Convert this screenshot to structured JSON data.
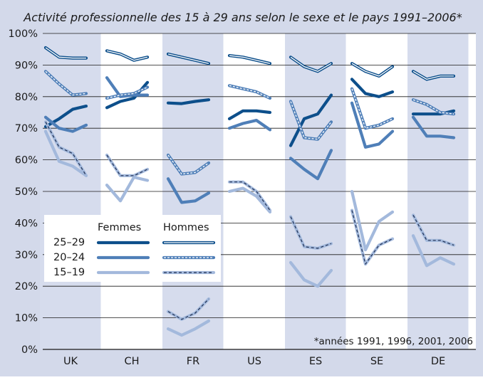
{
  "chart_data": {
    "type": "line",
    "title": "Activité professionnelle des 15 à 29 ans selon le sexe et le pays 1991–2006*",
    "footnote": "*années 1991, 1996, 2001, 2006",
    "countries": [
      "UK",
      "CH",
      "FR",
      "US",
      "ES",
      "SE",
      "DE"
    ],
    "years": [
      1991,
      1996,
      2001,
      2006
    ],
    "yticks": [
      "0%",
      "10%",
      "20%",
      "30%",
      "40%",
      "50%",
      "60%",
      "70%",
      "80%",
      "90%",
      "100%"
    ],
    "ylim": [
      0,
      100
    ],
    "grid": true,
    "shaded_columns": [
      "UK",
      "FR",
      "ES",
      "DE"
    ],
    "legend": {
      "position": "left-middle",
      "female_label": "Femmes",
      "male_label": "Hommes",
      "age_groups": [
        "25–29",
        "20–24",
        "15–19"
      ]
    },
    "colors": {
      "age_25_29": "#0d4f8b",
      "age_20_24": "#4f7fb8",
      "age_15_19": "#a3b9dc",
      "shade": "#d6dced",
      "frame": "#d3d9ea",
      "grid": "#1a1a1a"
    },
    "series": [
      {
        "country": "UK",
        "sex": "F",
        "age": "25–29",
        "values": [
          70.5,
          73,
          76,
          77
        ]
      },
      {
        "country": "UK",
        "sex": "F",
        "age": "20–24",
        "values": [
          73.5,
          70,
          69,
          71
        ]
      },
      {
        "country": "UK",
        "sex": "F",
        "age": "15–19",
        "values": [
          69,
          59.5,
          58,
          55
        ]
      },
      {
        "country": "UK",
        "sex": "M",
        "age": "25–29",
        "values": [
          95.5,
          92.5,
          92.2,
          92.2
        ]
      },
      {
        "country": "UK",
        "sex": "M",
        "age": "20–24",
        "values": [
          88,
          84,
          80.5,
          81
        ]
      },
      {
        "country": "UK",
        "sex": "M",
        "age": "15–19",
        "values": [
          72,
          64,
          62,
          55
        ]
      },
      {
        "country": "CH",
        "sex": "F",
        "age": "25–29",
        "values": [
          76.5,
          78.5,
          79.5,
          84.5
        ]
      },
      {
        "country": "CH",
        "sex": "F",
        "age": "20–24",
        "values": [
          86,
          80,
          80.5,
          80.5
        ]
      },
      {
        "country": "CH",
        "sex": "F",
        "age": "15–19",
        "values": [
          52,
          47,
          54.5,
          53.5
        ]
      },
      {
        "country": "CH",
        "sex": "M",
        "age": "25–29",
        "values": [
          94.5,
          93.5,
          91.5,
          92.5
        ]
      },
      {
        "country": "CH",
        "sex": "M",
        "age": "20–24",
        "values": [
          79.5,
          80.5,
          81,
          83
        ]
      },
      {
        "country": "CH",
        "sex": "M",
        "age": "15–19",
        "values": [
          61.5,
          55,
          55,
          57
        ]
      },
      {
        "country": "FR",
        "sex": "F",
        "age": "25–29",
        "values": [
          78,
          77.8,
          78.5,
          79
        ]
      },
      {
        "country": "FR",
        "sex": "F",
        "age": "20–24",
        "values": [
          54,
          46.5,
          47,
          49.5
        ]
      },
      {
        "country": "FR",
        "sex": "F",
        "age": "15–19",
        "values": [
          6.5,
          4.5,
          6.5,
          9
        ]
      },
      {
        "country": "FR",
        "sex": "M",
        "age": "25–29",
        "values": [
          93.5,
          92.5,
          91.5,
          90.5
        ]
      },
      {
        "country": "FR",
        "sex": "M",
        "age": "20–24",
        "values": [
          61.5,
          55.5,
          56,
          59
        ]
      },
      {
        "country": "FR",
        "sex": "M",
        "age": "15–19",
        "values": [
          12,
          9.5,
          11.5,
          16
        ]
      },
      {
        "country": "US",
        "sex": "F",
        "age": "25–29",
        "values": [
          73,
          75.5,
          75.5,
          75
        ]
      },
      {
        "country": "US",
        "sex": "F",
        "age": "20–24",
        "values": [
          70,
          71.5,
          72.5,
          69.5
        ]
      },
      {
        "country": "US",
        "sex": "F",
        "age": "15–19",
        "values": [
          50,
          51,
          48.5,
          43.5
        ]
      },
      {
        "country": "US",
        "sex": "M",
        "age": "25–29",
        "values": [
          93,
          92.5,
          91.5,
          90.5
        ]
      },
      {
        "country": "US",
        "sex": "M",
        "age": "20–24",
        "values": [
          83.5,
          82.5,
          81.5,
          79.5
        ]
      },
      {
        "country": "US",
        "sex": "M",
        "age": "15–19",
        "values": [
          53,
          53,
          50,
          44
        ]
      },
      {
        "country": "ES",
        "sex": "F",
        "age": "25–29",
        "values": [
          64.5,
          73,
          74.5,
          80.5
        ]
      },
      {
        "country": "ES",
        "sex": "F",
        "age": "20–24",
        "values": [
          60.5,
          57,
          54,
          63
        ]
      },
      {
        "country": "ES",
        "sex": "F",
        "age": "15–19",
        "values": [
          27.5,
          22,
          20,
          25
        ]
      },
      {
        "country": "ES",
        "sex": "M",
        "age": "25–29",
        "values": [
          92.5,
          89.5,
          88,
          90.5
        ]
      },
      {
        "country": "ES",
        "sex": "M",
        "age": "20–24",
        "values": [
          78.5,
          67,
          66.5,
          72
        ]
      },
      {
        "country": "ES",
        "sex": "M",
        "age": "15–19",
        "values": [
          42,
          32.5,
          32,
          33.5
        ]
      },
      {
        "country": "SE",
        "sex": "F",
        "age": "25–29",
        "values": [
          85.5,
          81,
          80,
          81.5
        ]
      },
      {
        "country": "SE",
        "sex": "F",
        "age": "20–24",
        "values": [
          78,
          64,
          65,
          69
        ]
      },
      {
        "country": "SE",
        "sex": "F",
        "age": "15–19",
        "values": [
          50,
          31.5,
          40.5,
          43.5
        ]
      },
      {
        "country": "SE",
        "sex": "M",
        "age": "25–29",
        "values": [
          90.5,
          88,
          86.5,
          89.5
        ]
      },
      {
        "country": "SE",
        "sex": "M",
        "age": "20–24",
        "values": [
          82.5,
          70,
          71,
          73
        ]
      },
      {
        "country": "SE",
        "sex": "M",
        "age": "15–19",
        "values": [
          44,
          27,
          33,
          35
        ]
      },
      {
        "country": "DE",
        "sex": "F",
        "age": "25–29",
        "values": [
          74.5,
          74.5,
          74.5,
          75.5
        ]
      },
      {
        "country": "DE",
        "sex": "F",
        "age": "20–24",
        "values": [
          73.5,
          67.5,
          67.5,
          67
        ]
      },
      {
        "country": "DE",
        "sex": "F",
        "age": "15–19",
        "values": [
          36,
          26.5,
          29,
          27
        ]
      },
      {
        "country": "DE",
        "sex": "M",
        "age": "25–29",
        "values": [
          88,
          85.5,
          86.5,
          86.5
        ]
      },
      {
        "country": "DE",
        "sex": "M",
        "age": "20–24",
        "values": [
          79,
          77.5,
          75,
          74.5
        ]
      },
      {
        "country": "DE",
        "sex": "M",
        "age": "15–19",
        "values": [
          42.5,
          34.5,
          34.5,
          33
        ]
      }
    ]
  }
}
